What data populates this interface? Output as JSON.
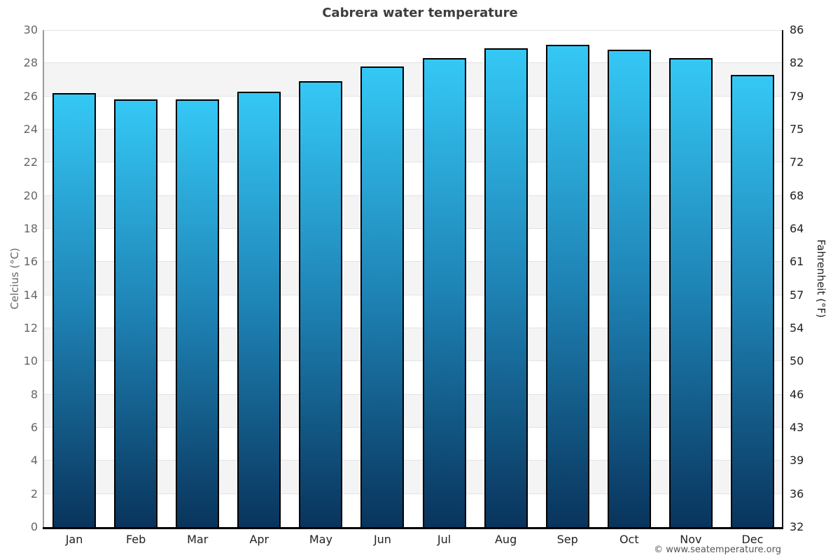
{
  "page": {
    "copyright": "© www.seatemperature.org"
  },
  "chart_data": {
    "type": "bar",
    "title": "Cabrera water temperature",
    "categories": [
      "Jan",
      "Feb",
      "Mar",
      "Apr",
      "May",
      "Jun",
      "Jul",
      "Aug",
      "Sep",
      "Oct",
      "Nov",
      "Dec"
    ],
    "values": [
      26.2,
      25.8,
      25.8,
      26.3,
      26.9,
      27.8,
      28.3,
      28.9,
      29.1,
      28.8,
      28.3,
      27.3
    ],
    "unit": "°C",
    "ylabel_left": "Celcius (°C)",
    "ylabel_right": "Fahrenheit (°F)",
    "ylim": [
      0,
      30
    ],
    "celsius_ticks": [
      0,
      2,
      4,
      6,
      8,
      10,
      12,
      14,
      16,
      18,
      20,
      22,
      24,
      26,
      28,
      30
    ],
    "fahrenheit_tick_labels": [
      "32",
      "36",
      "39",
      "43",
      "46",
      "50",
      "54",
      "57",
      "61",
      "64",
      "68",
      "72",
      "75",
      "79",
      "82",
      "86"
    ],
    "grid": "horizontal gridlines every 2°C with alternating gray bands",
    "legend": "none",
    "colors": {
      "bar_top": "#35c8f5",
      "bar_mid": "#1e82b4",
      "bar_bottom": "#09345c",
      "bar_border": "#000000",
      "band": "#f4f4f4",
      "gridline": "#e3e3e3",
      "axis_left": "#9b9b9b",
      "axis_dark": "#111111",
      "title": "#3d3d3d",
      "left_ticks": "#666666",
      "right_ticks": "#222222",
      "months": "#222222",
      "copyright": "#555555"
    }
  }
}
